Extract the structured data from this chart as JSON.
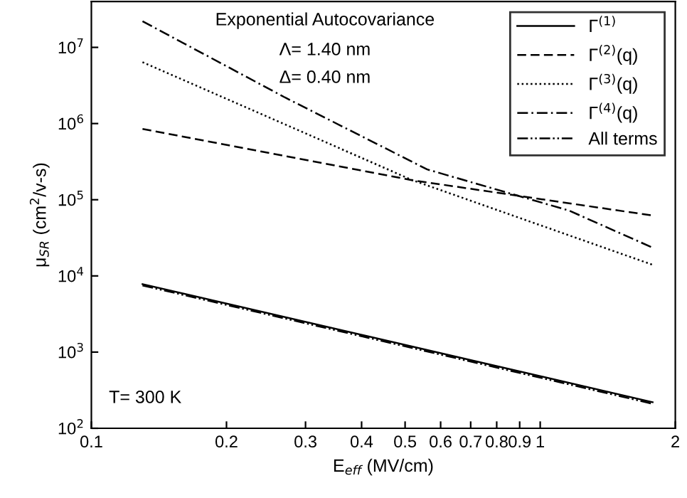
{
  "chart_data": {
    "type": "line",
    "xlabel": "E$_{eff}$ (MV/cm)",
    "ylabel": "μ$_{SR}$ (cm$^{2}$/v-s)",
    "log": "xy",
    "xlim": [
      0.1,
      2
    ],
    "ylim": [
      100,
      40000000
    ],
    "xticks": [
      0.1,
      0.2,
      0.3,
      0.4,
      0.5,
      0.6,
      0.7,
      0.8,
      0.9,
      1,
      2
    ],
    "yticks": [
      {
        "value": 100,
        "label": "10$^{2}$"
      },
      {
        "value": 1000,
        "label": "10$^{3}$"
      },
      {
        "value": 10000,
        "label": "10$^{4}$"
      },
      {
        "value": 100000,
        "label": "10$^{5}$"
      },
      {
        "value": 1000000,
        "label": "10$^{6}$"
      },
      {
        "value": 10000000,
        "label": "10$^{7}$"
      }
    ],
    "grid": false,
    "legend": "top right",
    "marker": "none",
    "annotations": [
      "Exponential Autocovariance",
      "Λ= 1.40 nm",
      "Δ= 0.40 nm",
      "T= 300 K"
    ],
    "series": [
      {
        "name": "Γ$^{(1)}$",
        "color": "#000000",
        "line_style": "solid",
        "x": [
          0.13,
          1.78
        ],
        "values": [
          7800,
          220
        ]
      },
      {
        "name": "Γ$^{(2)}$(q)",
        "color": "#000000",
        "line_style": "dashed",
        "x": [
          0.13,
          0.52,
          1.78
        ],
        "values": [
          850000,
          180000,
          62000
        ]
      },
      {
        "name": "Γ$^{(3)}$(q)",
        "color": "#000000",
        "line_style": "dotted",
        "x": [
          0.13,
          0.52,
          1.78
        ],
        "values": [
          6400000,
          180000,
          14000
        ]
      },
      {
        "name": "Γ$^{(4)}$(q)",
        "color": "#000000",
        "line_style": "dashdot",
        "x": [
          0.13,
          0.27,
          0.56,
          1.16,
          1.78
        ],
        "values": [
          22000000,
          2200000,
          250000,
          72000,
          23500
        ]
      },
      {
        "name": "All terms",
        "color": "#000000",
        "line_style": "dashdotdot",
        "x": [
          0.13,
          1.78
        ],
        "values": [
          7500,
          210
        ]
      }
    ]
  }
}
